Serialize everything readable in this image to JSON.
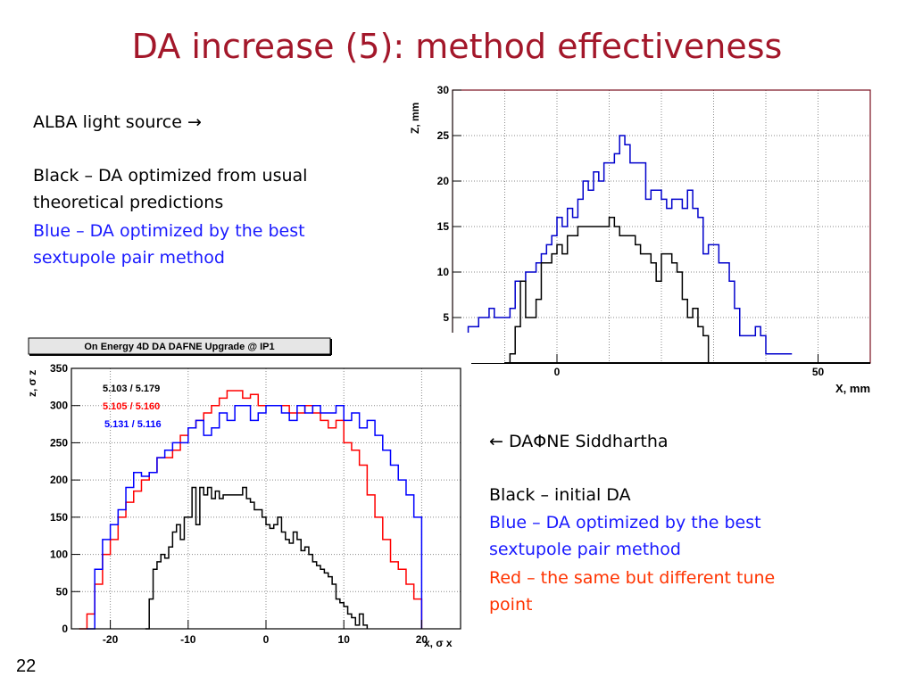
{
  "slide": {
    "title": "DA increase (5): method effectiveness",
    "page_number": "22",
    "left_text": {
      "line1": "ALBA light source →",
      "black_line_a": "Black – DA  optimized from usual",
      "black_line_b": "theoretical predictions",
      "blue_line_a": "Blue – DA optimized by the best",
      "blue_line_b": "sextupole pair method"
    },
    "right_text": {
      "line1": "←  DAΦNE Siddhartha",
      "black_line": "Black – initial DA",
      "blue_line_a": "Blue – DA optimized by the best",
      "blue_line_b": "sextupole pair method",
      "red_line_a": "Red – the same but different tune",
      "red_line_b": "point"
    }
  },
  "chart_data": [
    {
      "type": "line",
      "chart": "alba",
      "xlabel": "X, mm",
      "ylabel": "Z, mm",
      "xlim": [
        -20,
        60
      ],
      "ylim": [
        0,
        30
      ],
      "x_ticks": [
        "0",
        "50"
      ],
      "y_ticks": [
        "5",
        "10",
        "15",
        "20",
        "25",
        "30"
      ],
      "grid": true,
      "series": [
        {
          "color": "#0000cc",
          "x": [
            -18,
            -17,
            -16,
            -15,
            -14,
            -13,
            -12,
            -11,
            -10,
            -9,
            -8,
            -7,
            -6,
            -5,
            -4,
            -3,
            -2,
            -1,
            0,
            1,
            2,
            3,
            4,
            5,
            6,
            7,
            8,
            9,
            10,
            11,
            12,
            13,
            14,
            15,
            16,
            17,
            18,
            19,
            20,
            21,
            22,
            23,
            24,
            25,
            26,
            27,
            28,
            29,
            30,
            31,
            32,
            33,
            34,
            35,
            36,
            37,
            38,
            39,
            40,
            41,
            42,
            43,
            44,
            45
          ],
          "y": [
            2,
            4,
            4,
            5,
            5,
            6,
            5,
            5,
            5,
            6,
            9,
            9,
            10,
            10,
            11,
            12,
            13,
            14,
            16,
            15,
            17,
            16,
            18,
            20,
            19,
            21,
            20,
            22,
            22,
            23,
            25,
            24,
            22,
            22,
            22,
            18,
            19,
            19,
            18,
            17,
            18,
            18,
            17,
            19,
            17,
            16,
            12,
            13,
            13,
            11,
            11,
            9,
            6,
            3,
            3,
            3,
            4,
            3,
            1,
            1,
            1,
            1,
            1,
            1
          ]
        },
        {
          "color": "#000000",
          "x": [
            -10,
            -9,
            -8,
            -7,
            -6,
            -5,
            -4,
            -3,
            -2,
            -1,
            0,
            1,
            2,
            3,
            4,
            5,
            6,
            7,
            8,
            9,
            10,
            11,
            12,
            13,
            14,
            15,
            16,
            17,
            18,
            19,
            20,
            21,
            22,
            23,
            24,
            25,
            26,
            27,
            28,
            29
          ],
          "y": [
            -2,
            1,
            4,
            9,
            5,
            5,
            7,
            11,
            11,
            12,
            13,
            12,
            14,
            14,
            15,
            15,
            15,
            15,
            15,
            15,
            16,
            15,
            14,
            14,
            14,
            13,
            12,
            12,
            11,
            9,
            12,
            12,
            11,
            10,
            7,
            5,
            6,
            4,
            3,
            0
          ]
        }
      ]
    },
    {
      "type": "line",
      "chart": "dafne",
      "title": "On Energy 4D DA DAFNE Upgrade @ IP1",
      "xlabel": "x, σ x",
      "ylabel": "z, σ z",
      "xlim": [
        -25,
        25
      ],
      "ylim": [
        0,
        350
      ],
      "x_ticks": [
        "-20",
        "-10",
        "0",
        "10",
        "20"
      ],
      "y_ticks": [
        "0",
        "50",
        "100",
        "150",
        "200",
        "250",
        "300",
        "350"
      ],
      "grid": true,
      "legend": [
        "5.103 / 5.179",
        "5.105 / 5.160",
        "5.131 / 5.116"
      ],
      "series": [
        {
          "color": "#000000",
          "x": [
            -15.5,
            -15,
            -14.5,
            -14,
            -13.5,
            -13,
            -12.5,
            -12,
            -11.5,
            -11,
            -10.5,
            -10,
            -9.5,
            -9,
            -8.5,
            -8,
            -7.5,
            -7,
            -6.5,
            -6,
            -5.5,
            -5,
            -4.5,
            -4,
            -3.5,
            -3,
            -2.5,
            -2,
            -1.5,
            -1,
            -0.5,
            0,
            0.5,
            1,
            1.5,
            2,
            2.5,
            3,
            3.5,
            4,
            4.5,
            5,
            5.5,
            6,
            6.5,
            7,
            7.5,
            8,
            8.5,
            9,
            9.5,
            10,
            10.5,
            11,
            11.5,
            12,
            12.5,
            13
          ],
          "y": [
            0,
            40,
            80,
            90,
            100,
            95,
            110,
            130,
            140,
            120,
            150,
            150,
            190,
            140,
            190,
            180,
            190,
            175,
            185,
            175,
            180,
            180,
            180,
            180,
            180,
            190,
            175,
            170,
            160,
            160,
            150,
            140,
            135,
            140,
            150,
            130,
            120,
            115,
            130,
            120,
            105,
            110,
            100,
            90,
            85,
            80,
            75,
            70,
            60,
            40,
            35,
            30,
            20,
            15,
            5,
            20,
            5,
            0
          ]
        },
        {
          "color": "#ff0000",
          "x": [
            -24,
            -23,
            -22,
            -21,
            -20,
            -19,
            -18,
            -17,
            -16,
            -15,
            -14,
            -13,
            -12,
            -11,
            -10,
            -9,
            -8,
            -7,
            -6,
            -5,
            -4,
            -3,
            -2,
            -1,
            0,
            1,
            2,
            3,
            4,
            5,
            6,
            7,
            8,
            9,
            10,
            11,
            12,
            13,
            14,
            15,
            16,
            17,
            18,
            19,
            20
          ],
          "y": [
            0,
            20,
            60,
            100,
            120,
            150,
            170,
            185,
            200,
            210,
            230,
            230,
            240,
            260,
            270,
            280,
            290,
            300,
            310,
            320,
            320,
            310,
            315,
            300,
            300,
            300,
            300,
            290,
            290,
            300,
            290,
            280,
            270,
            280,
            250,
            240,
            220,
            180,
            150,
            120,
            90,
            80,
            60,
            40,
            0
          ]
        },
        {
          "color": "#0000ff",
          "x": [
            -23,
            -22,
            -21,
            -20,
            -19,
            -18,
            -17,
            -16,
            -15,
            -14,
            -13,
            -12,
            -11,
            -10,
            -9,
            -8,
            -7,
            -6,
            -5,
            -4,
            -3,
            -2,
            -1,
            0,
            1,
            2,
            3,
            4,
            5,
            6,
            7,
            8,
            9,
            10,
            11,
            12,
            13,
            14,
            15,
            16,
            17,
            18,
            19,
            20
          ],
          "y": [
            0,
            80,
            120,
            140,
            160,
            190,
            210,
            205,
            210,
            230,
            240,
            250,
            250,
            270,
            280,
            260,
            270,
            290,
            280,
            300,
            300,
            280,
            290,
            300,
            300,
            290,
            280,
            300,
            290,
            300,
            290,
            290,
            300,
            280,
            290,
            270,
            280,
            260,
            240,
            220,
            200,
            180,
            150,
            0
          ]
        }
      ]
    }
  ]
}
